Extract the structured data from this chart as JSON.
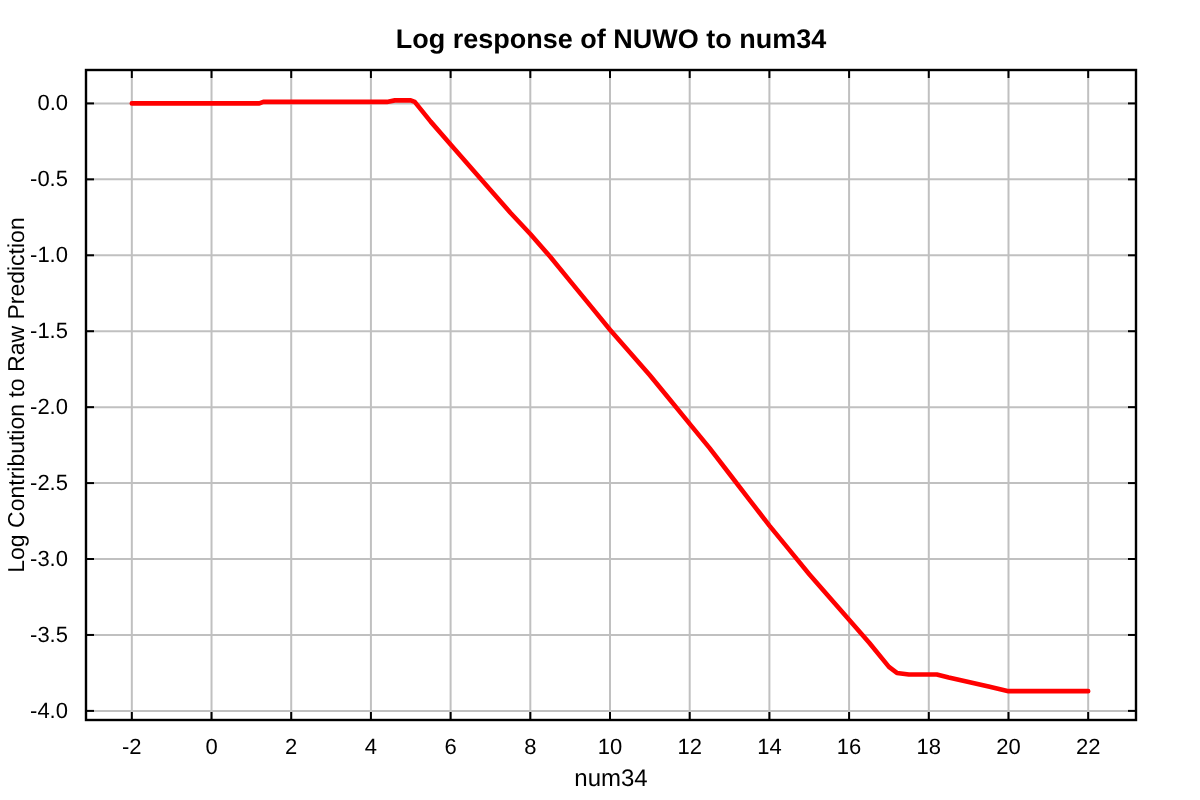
{
  "chart_data": {
    "type": "line",
    "title": "Log response of NUWO to num34",
    "xlabel": "num34",
    "ylabel": "Log Contribution to Raw Prediction",
    "x": [
      -2,
      -1,
      0,
      1,
      1.2,
      1.3,
      2,
      3,
      4,
      4.4,
      4.6,
      5.0,
      5.1,
      5.5,
      6,
      6.5,
      7,
      7.5,
      8,
      8.5,
      9,
      9.5,
      10,
      10.5,
      11,
      11.5,
      12,
      12.5,
      13,
      13.5,
      14,
      14.5,
      15,
      15.5,
      16,
      16.5,
      17,
      17.2,
      17.5,
      18,
      18.2,
      18.5,
      19,
      19.5,
      20,
      20.5,
      21,
      21.5,
      22
    ],
    "series": [
      {
        "color": "#ff0000",
        "values": [
          0,
          0,
          0,
          0,
          0,
          0.01,
          0.01,
          0.01,
          0.01,
          0.01,
          0.02,
          0.02,
          0.01,
          -0.12,
          -0.27,
          -0.42,
          -0.57,
          -0.72,
          -0.86,
          -1.01,
          -1.17,
          -1.33,
          -1.49,
          -1.64,
          -1.79,
          -1.95,
          -2.11,
          -2.27,
          -2.44,
          -2.61,
          -2.78,
          -2.94,
          -3.1,
          -3.25,
          -3.4,
          -3.55,
          -3.71,
          -3.75,
          -3.76,
          -3.76,
          -3.76,
          -3.78,
          -3.81,
          -3.84,
          -3.87,
          -3.87,
          -3.87,
          -3.87,
          -3.87
        ]
      }
    ],
    "xlim": [
      -3.15,
      23.2
    ],
    "ylim": [
      -4.06,
      0.22
    ],
    "xticks": [
      -2,
      0,
      2,
      4,
      6,
      8,
      10,
      12,
      14,
      16,
      18,
      20,
      22
    ],
    "yticks": [
      {
        "value": 0,
        "label": "0.0"
      },
      {
        "value": -0.5,
        "label": "-0.5"
      },
      {
        "value": -1,
        "label": "-1.0"
      },
      {
        "value": -1.5,
        "label": "-1.5"
      },
      {
        "value": -2,
        "label": "-2.0"
      },
      {
        "value": -2.5,
        "label": "-2.5"
      },
      {
        "value": -3,
        "label": "-3.0"
      },
      {
        "value": -3.5,
        "label": "-3.5"
      },
      {
        "value": -4,
        "label": "-4.0"
      }
    ],
    "grid": true,
    "marker": "none",
    "line_style": "solid"
  }
}
